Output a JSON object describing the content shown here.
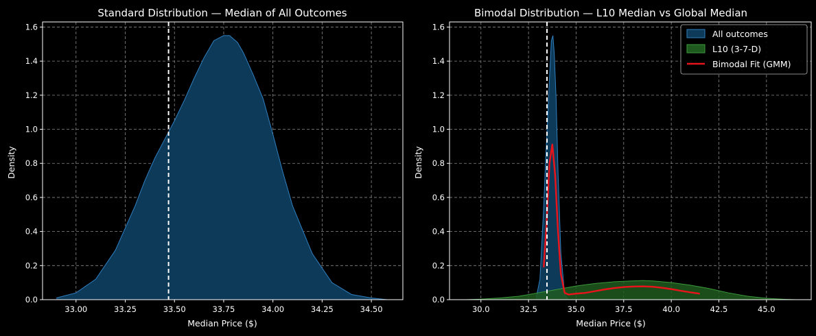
{
  "colors": {
    "background": "#000000",
    "all_outcomes_fill": "#0e3a5a",
    "all_outcomes_line": "#2f7fbf",
    "l10_fill": "#1e5a1e",
    "l10_line": "#3c9a3c",
    "gmm_line": "#e8141c",
    "median_line": "#ffffff"
  },
  "chart_data": [
    {
      "type": "area",
      "title": "Standard Distribution — Median of All Outcomes",
      "xlabel": "Median Price ($)",
      "ylabel": "Density",
      "xlim": [
        32.83,
        34.66
      ],
      "ylim": [
        0,
        1.63
      ],
      "xticks": [
        33.0,
        33.25,
        33.5,
        33.75,
        34.0,
        34.25,
        34.5
      ],
      "xtick_labels": [
        "33.00",
        "33.25",
        "33.50",
        "33.75",
        "34.00",
        "34.25",
        "34.50"
      ],
      "yticks": [
        0,
        0.2,
        0.4,
        0.6,
        0.8,
        1.0,
        1.2,
        1.4,
        1.6
      ],
      "ytick_labels": [
        "0.0",
        "0.2",
        "0.4",
        "0.6",
        "0.8",
        "1.0",
        "1.2",
        "1.4",
        "1.6"
      ],
      "grid": true,
      "median_line_x": 33.47,
      "series": [
        {
          "kind": "kde",
          "x": [
            32.9,
            33.0,
            33.1,
            33.2,
            33.3,
            33.35,
            33.4,
            33.45,
            33.5,
            33.55,
            33.6,
            33.65,
            33.7,
            33.75,
            33.78,
            33.82,
            33.85,
            33.9,
            33.95,
            34.0,
            34.05,
            34.1,
            34.2,
            34.3,
            34.4,
            34.5,
            34.58
          ],
          "y": [
            0.01,
            0.04,
            0.12,
            0.29,
            0.55,
            0.7,
            0.83,
            0.94,
            1.05,
            1.17,
            1.3,
            1.42,
            1.52,
            1.55,
            1.55,
            1.51,
            1.45,
            1.32,
            1.18,
            0.97,
            0.75,
            0.55,
            0.27,
            0.1,
            0.03,
            0.01,
            0.0
          ]
        }
      ]
    },
    {
      "type": "area",
      "title": "Bimodal Distribution — L10 Median vs Global Median",
      "xlabel": "Median Price ($)",
      "ylabel": "Density",
      "xlim": [
        28.35,
        47.35
      ],
      "ylim": [
        0,
        1.63
      ],
      "xticks": [
        30.0,
        32.5,
        35.0,
        37.5,
        40.0,
        42.5,
        45.0
      ],
      "xtick_labels": [
        "30.0",
        "32.5",
        "35.0",
        "37.5",
        "40.0",
        "42.5",
        "45.0"
      ],
      "yticks": [
        0,
        0.2,
        0.4,
        0.6,
        0.8,
        1.0,
        1.2,
        1.4,
        1.6
      ],
      "ytick_labels": [
        "0.0",
        "0.2",
        "0.4",
        "0.6",
        "0.8",
        "1.0",
        "1.2",
        "1.4",
        "1.6"
      ],
      "grid": true,
      "median_line_x": 33.47,
      "legend": {
        "placement": "top-right"
      },
      "series": [
        {
          "name": "All outcomes",
          "kind": "kde",
          "x": [
            32.9,
            33.1,
            33.3,
            33.4,
            33.5,
            33.6,
            33.7,
            33.78,
            33.85,
            33.95,
            34.05,
            34.2,
            34.4,
            34.58
          ],
          "y": [
            0.01,
            0.12,
            0.55,
            0.83,
            1.05,
            1.3,
            1.52,
            1.55,
            1.45,
            1.18,
            0.75,
            0.27,
            0.03,
            0.0
          ]
        },
        {
          "name": "L10 (3-7-D)",
          "kind": "kde",
          "x": [
            29.2,
            30.0,
            31.0,
            32.0,
            33.0,
            34.0,
            35.0,
            36.0,
            37.0,
            38.0,
            38.5,
            39.0,
            40.0,
            41.0,
            42.0,
            43.0,
            44.0,
            45.0,
            46.0,
            46.5
          ],
          "y": [
            0.0,
            0.003,
            0.01,
            0.02,
            0.04,
            0.06,
            0.08,
            0.095,
            0.105,
            0.11,
            0.112,
            0.11,
            0.1,
            0.085,
            0.065,
            0.04,
            0.02,
            0.008,
            0.002,
            0.0
          ]
        },
        {
          "name": "Bimodal Fit (GMM)",
          "kind": "line",
          "x": [
            33.3,
            33.45,
            33.6,
            33.75,
            33.9,
            34.05,
            34.2,
            34.4,
            34.6,
            35.0,
            35.5,
            36.0,
            36.5,
            37.0,
            37.5,
            38.0,
            38.5,
            39.0,
            39.5,
            40.0,
            40.5,
            41.0,
            41.5
          ],
          "y": [
            0.19,
            0.45,
            0.8,
            0.91,
            0.73,
            0.4,
            0.15,
            0.04,
            0.03,
            0.035,
            0.04,
            0.05,
            0.06,
            0.068,
            0.074,
            0.077,
            0.078,
            0.076,
            0.07,
            0.062,
            0.052,
            0.043,
            0.035
          ]
        }
      ]
    }
  ]
}
